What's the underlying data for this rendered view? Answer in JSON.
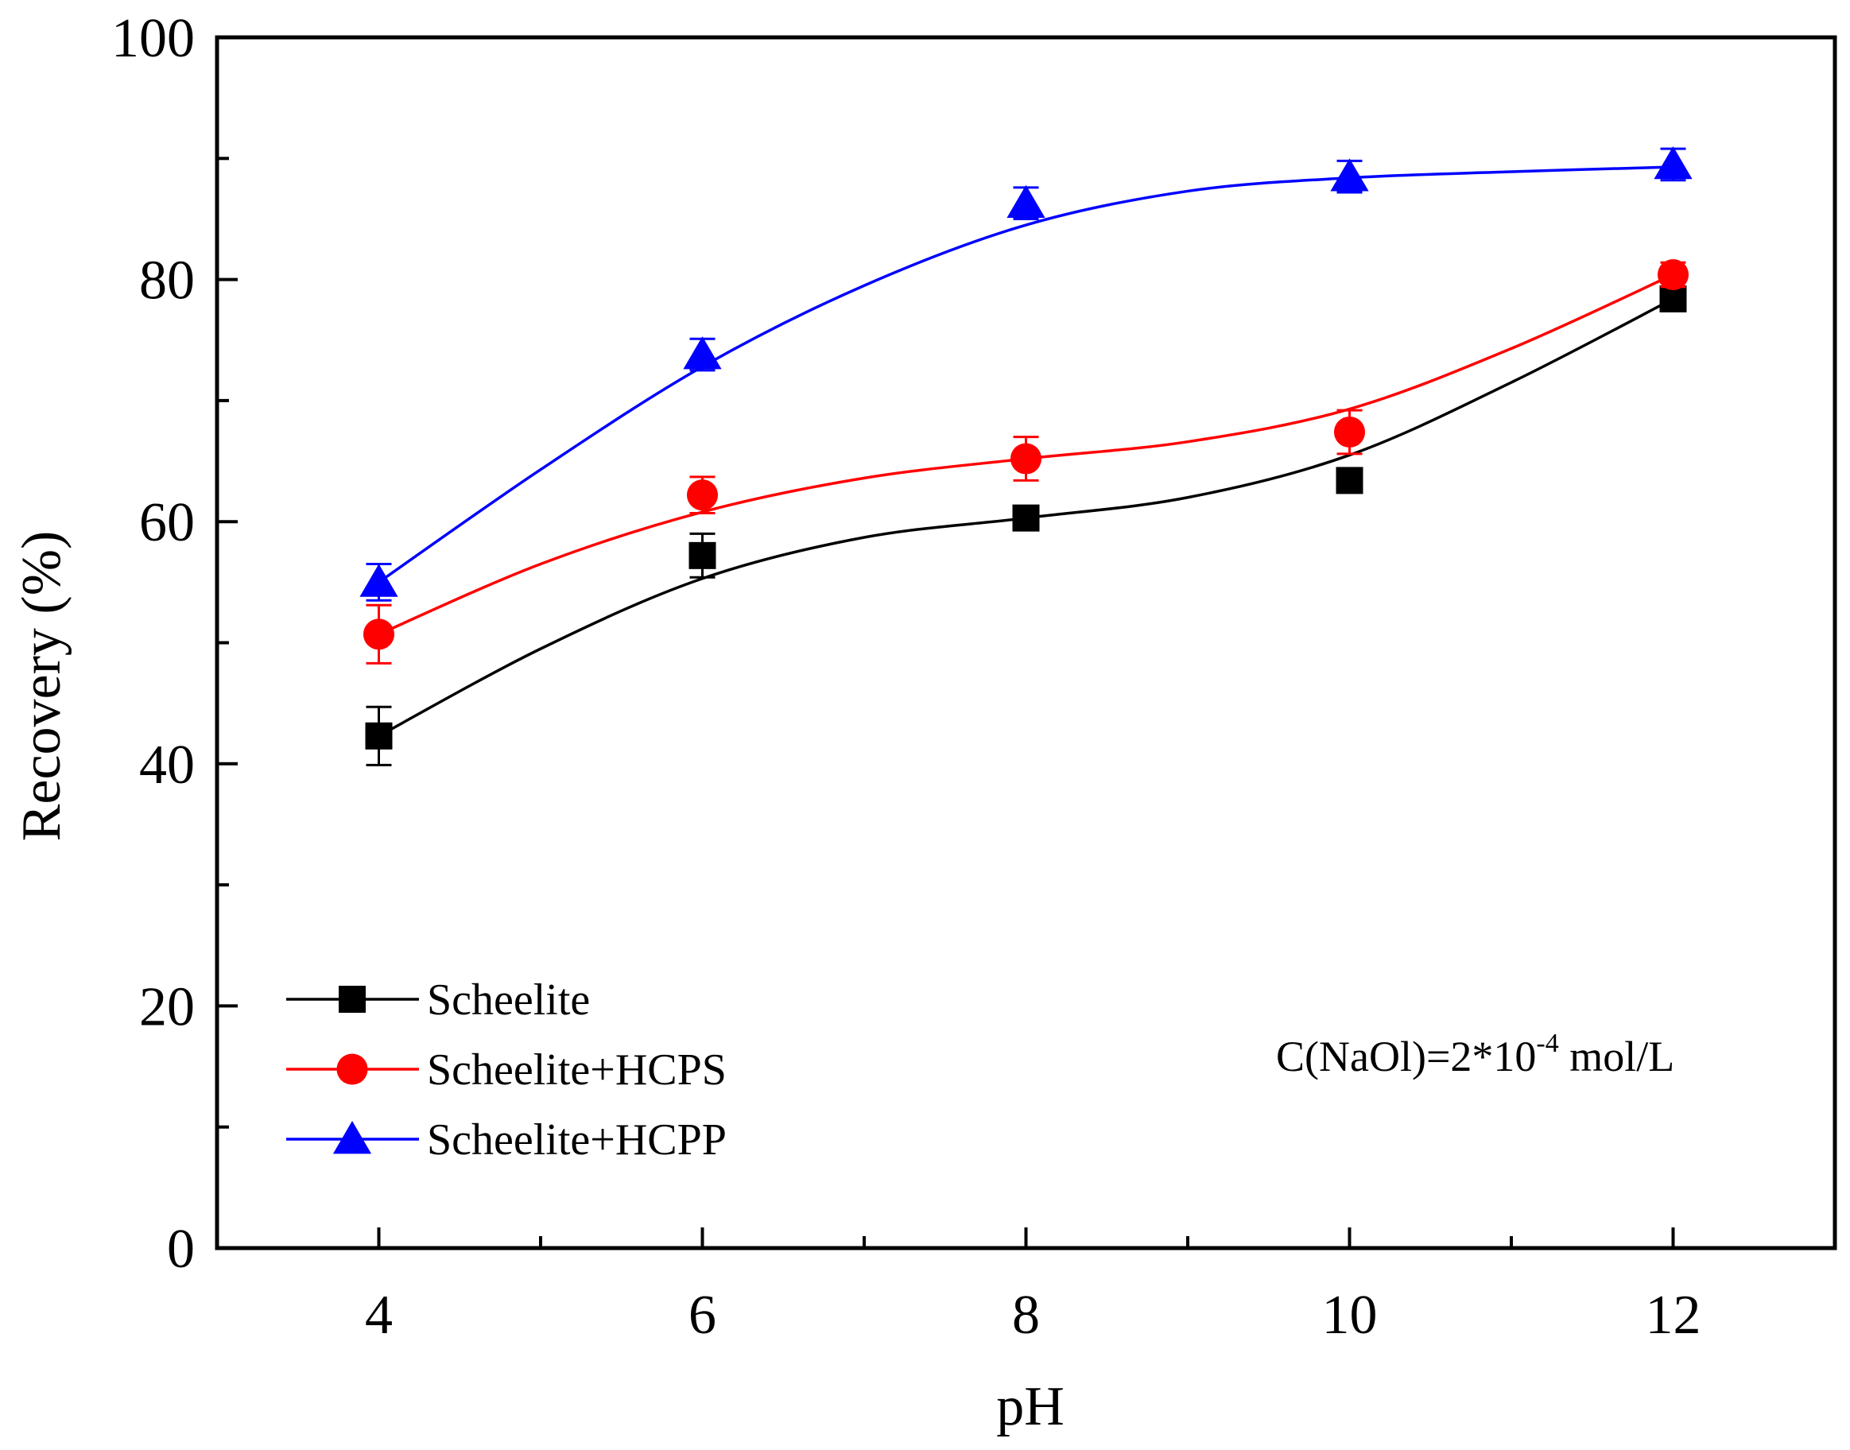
{
  "chart_data": {
    "type": "line",
    "xlabel": "pH",
    "ylabel": "Recovery (%)",
    "xlim": [
      3,
      13
    ],
    "ylim": [
      0,
      100
    ],
    "x_ticks": [
      4,
      6,
      8,
      10,
      12
    ],
    "y_ticks": [
      0,
      20,
      40,
      60,
      80,
      100
    ],
    "x": [
      4,
      6,
      8,
      10,
      12
    ],
    "grid": false,
    "legend_position": "bottom-left",
    "series": [
      {
        "name": "Scheelite",
        "color": "#000000",
        "marker": "square",
        "values": [
          42.3,
          57.2,
          60.3,
          63.4,
          78.4
        ],
        "errors": [
          2.4,
          1.8,
          0.5,
          0.6,
          0.6
        ],
        "fit": [
          [
            4,
            42.3
          ],
          [
            5,
            49.5
          ],
          [
            6,
            55.3
          ],
          [
            7,
            58.7
          ],
          [
            8,
            60.3
          ],
          [
            9,
            62.0
          ],
          [
            10,
            65.5
          ],
          [
            11,
            71.5
          ],
          [
            12,
            78.4
          ]
        ]
      },
      {
        "name": "Scheelite+HCPS",
        "color": "#ff0000",
        "marker": "circle",
        "values": [
          50.7,
          62.2,
          65.2,
          67.4,
          80.4
        ],
        "errors": [
          2.4,
          1.5,
          1.8,
          1.8,
          1.0
        ],
        "fit": [
          [
            4,
            50.7
          ],
          [
            5,
            56.5
          ],
          [
            6,
            60.8
          ],
          [
            7,
            63.6
          ],
          [
            8,
            65.2
          ],
          [
            9,
            66.6
          ],
          [
            10,
            69.3
          ],
          [
            11,
            74.3
          ],
          [
            12,
            80.4
          ]
        ]
      },
      {
        "name": "Scheelite+HCPP",
        "color": "#0000ff",
        "marker": "triangle",
        "values": [
          55.0,
          73.8,
          86.3,
          88.5,
          89.5
        ],
        "errors": [
          1.5,
          1.3,
          1.3,
          1.3,
          1.3
        ],
        "fit": [
          [
            4,
            55.0
          ],
          [
            5,
            64.3
          ],
          [
            6,
            72.8
          ],
          [
            7,
            79.5
          ],
          [
            8,
            84.5
          ],
          [
            9,
            87.3
          ],
          [
            10,
            88.4
          ],
          [
            11,
            88.9
          ],
          [
            12,
            89.3
          ]
        ]
      }
    ],
    "annotation": {
      "text": "C(NaOl)=2*10",
      "superscript": "-4",
      "suffix": " mol/L"
    }
  }
}
